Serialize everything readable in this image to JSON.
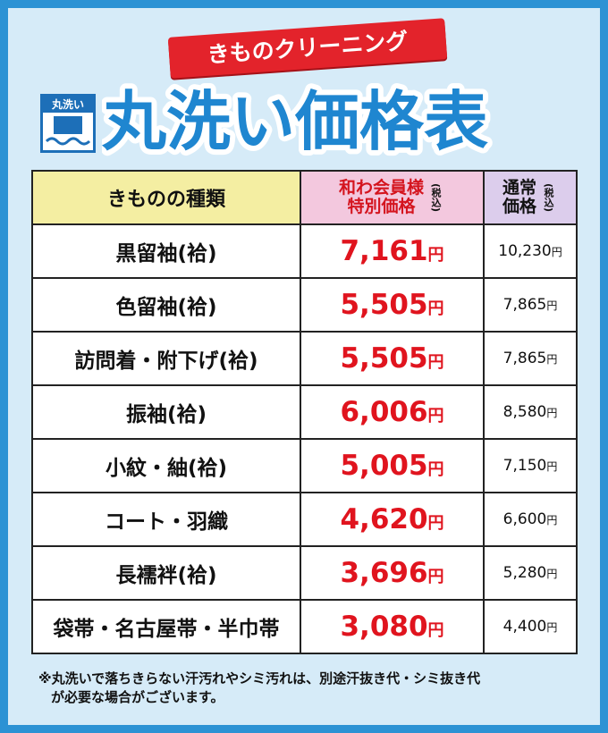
{
  "header": {
    "banner": "きものクリーニング",
    "icon_label": "丸洗い",
    "title": "丸洗い価格表"
  },
  "table": {
    "columns": {
      "kind": "きものの種類",
      "member": [
        "和わ会員様",
        "特別価格"
      ],
      "regular": [
        "通常",
        "価格"
      ],
      "tax": "(税込)"
    },
    "currency": "円",
    "rows": [
      {
        "name": "黒留袖(袷)",
        "member_price": "7,161",
        "regular_price": "10,230"
      },
      {
        "name": "色留袖(袷)",
        "member_price": "5,505",
        "regular_price": "7,865"
      },
      {
        "name": "訪問着・附下げ(袷)",
        "member_price": "5,505",
        "regular_price": "7,865"
      },
      {
        "name": "振袖(袷)",
        "member_price": "6,006",
        "regular_price": "8,580"
      },
      {
        "name": "小紋・紬(袷)",
        "member_price": "5,005",
        "regular_price": "7,150"
      },
      {
        "name": "コート・羽織",
        "member_price": "4,620",
        "regular_price": "6,600"
      },
      {
        "name": "長襦袢(袷)",
        "member_price": "3,696",
        "regular_price": "5,280"
      },
      {
        "name": "袋帯・名古屋帯・半巾帯",
        "member_price": "3,080",
        "regular_price": "4,400"
      }
    ]
  },
  "footnote": [
    "※丸洗いで落ちきらない汗汚れやシミ汚れは、別途汗抜き代・シミ抜き代",
    "が必要な場合がございます。"
  ]
}
